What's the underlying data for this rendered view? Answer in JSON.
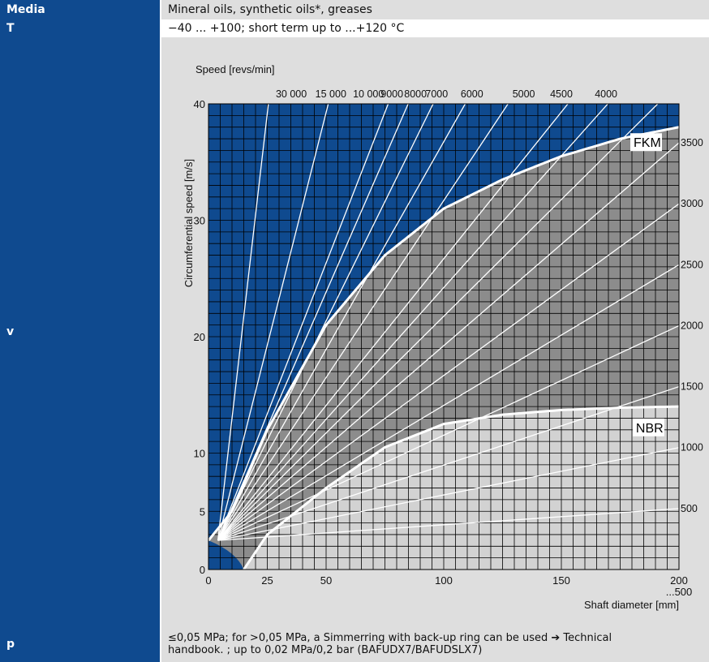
{
  "table": {
    "media": {
      "label": "Media",
      "value": "Mineral oils, synthetic oils*, greases"
    },
    "temperature": {
      "label": "T",
      "value": "−40 ... +100; short term up to ...+120 °C"
    },
    "speed": {
      "label": "v"
    },
    "pressure": {
      "label": "p",
      "value_line1": "≤0,05 MPa; for >0,05 MPa, a Simmerring with back-up ring can be used ➔ Technical",
      "value_line2": "handbook. ; up to 0,02 MPa/0,2 bar (BAFUDX7/BAFUDSLX7)"
    }
  },
  "colors": {
    "label_bg": "#0f4a8f",
    "value_bg": "#dedede",
    "fkm_fill": "#8c8c8c",
    "nbr_fill": "#d2d2d2",
    "upper_region": "#0f4a8f"
  },
  "chart_data": {
    "type": "line",
    "top_axis_label": "Speed [revs/min]",
    "ylabel": "Circumferential speed [m/s]",
    "xlabel": "Shaft diameter [mm]",
    "x_tick_labels": [
      "0",
      "25",
      "50",
      "100",
      "150",
      "200",
      "...500"
    ],
    "y_tick_labels": [
      "0",
      "5",
      "10",
      "20",
      "30",
      "40"
    ],
    "xlim": [
      0,
      200
    ],
    "ylim": [
      0,
      40
    ],
    "grid": true,
    "speed_lines_rpm_top": [
      30000,
      15000,
      10000,
      9000,
      8000,
      7000,
      6000,
      5000,
      4500,
      4000
    ],
    "speed_lines_rpm_top_labels": [
      "30 000",
      "15 000",
      "10 000",
      "9000",
      "8000",
      "7000",
      "6000",
      "5000",
      "4500",
      "4000"
    ],
    "speed_lines_rpm_right": [
      3500,
      3000,
      2500,
      2000,
      1500,
      1000,
      500
    ],
    "speed_lines_rpm_right_labels": [
      "3500",
      "3000",
      "2500",
      "2000",
      "1500",
      "1000",
      "500"
    ],
    "series": [
      {
        "name": "FKM",
        "x": [
          0,
          10,
          25,
          50,
          75,
          100,
          125,
          150,
          175,
          200
        ],
        "y": [
          2.5,
          5,
          12,
          21,
          27,
          31,
          33.5,
          35.5,
          37,
          38
        ]
      },
      {
        "name": "NBR",
        "x": [
          15,
          25,
          50,
          75,
          100,
          125,
          150,
          175,
          200
        ],
        "y": [
          0,
          3,
          7,
          10.5,
          12.5,
          13.3,
          13.7,
          13.9,
          14
        ]
      }
    ]
  }
}
